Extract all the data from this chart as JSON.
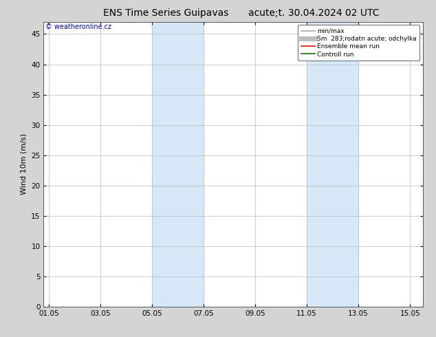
{
  "title_left": "ENS Time Series Guipavas",
  "title_right": "acute;t. 30.04.2024 02 UTC",
  "ylabel": "Wind 10m (m/s)",
  "watermark": "© weatheronline.cz",
  "watermark_color": "#0000cc",
  "xlabel_ticks": [
    "01.05",
    "03.05",
    "05.05",
    "07.05",
    "09.05",
    "11.05",
    "13.05",
    "15.05"
  ],
  "ylim": [
    0,
    47
  ],
  "yticks": [
    0,
    5,
    10,
    15,
    20,
    25,
    30,
    35,
    40,
    45
  ],
  "bg_color": "#d4d4d4",
  "plot_bg_color": "#ffffff",
  "shaded_regions": [
    {
      "xstart": 4.0,
      "xend": 6.0,
      "color": "#d6e8f7"
    },
    {
      "xstart": 10.0,
      "xend": 12.0,
      "color": "#d6e8f7"
    }
  ],
  "grid_color": "#bbbbbb",
  "legend_entries": [
    {
      "label": "min/max",
      "color": "#aaaaaa",
      "lw": 1.2,
      "style": "solid"
    },
    {
      "label": "Sm  283;rodatn acute; odchylka",
      "color": "#bbbbbb",
      "lw": 5,
      "style": "solid"
    },
    {
      "label": "Ensemble mean run",
      "color": "#ff0000",
      "lw": 1.2,
      "style": "solid"
    },
    {
      "label": "Controll run",
      "color": "#008000",
      "lw": 1.2,
      "style": "solid"
    }
  ],
  "x_num_ticks": [
    0,
    2,
    4,
    6,
    8,
    10,
    12,
    14
  ],
  "font_size_title": 10,
  "font_size_axis": 8,
  "font_size_tick": 7.5,
  "font_size_legend": 6.5,
  "font_size_watermark": 7
}
